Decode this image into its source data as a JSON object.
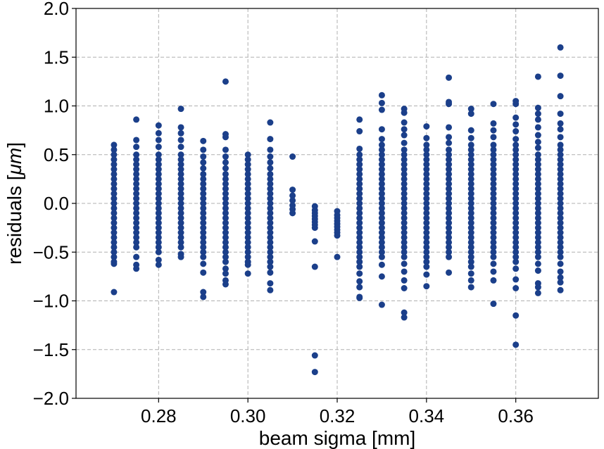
{
  "chart_data": {
    "type": "scatter",
    "title": "",
    "xlabel": "beam sigma [mm]",
    "ylabel": "residuals [",
    "ylabel_mu": "μm",
    "ylabel_end": "]",
    "xlim": [
      0.2615,
      0.3785
    ],
    "ylim": [
      -2.0,
      2.0
    ],
    "x_ticks": [
      0.28,
      0.3,
      0.32,
      0.34,
      0.36
    ],
    "x_tick_labels": [
      "0.28",
      "0.30",
      "0.32",
      "0.34",
      "0.36"
    ],
    "y_ticks": [
      -2.0,
      -1.5,
      -1.0,
      -0.5,
      0.0,
      0.5,
      1.0,
      1.5,
      2.0
    ],
    "y_tick_labels": [
      "−2.0",
      "−1.5",
      "−1.0",
      "−0.5",
      "0.0",
      "0.5",
      "1.0",
      "1.5",
      "2.0"
    ],
    "grid": true,
    "marker_color": "#1b3f8a",
    "series": [
      {
        "name": "residuals",
        "points": [
          {
            "x": 0.27,
            "ys": [
              0.6,
              0.55,
              0.5,
              0.45,
              0.4,
              0.35,
              0.3,
              0.25,
              0.2,
              0.15,
              0.1,
              0.05,
              0.0,
              -0.05,
              -0.1,
              -0.15,
              -0.2,
              -0.25,
              -0.3,
              -0.35,
              -0.4,
              -0.45,
              -0.5,
              -0.55,
              -0.6,
              -0.62,
              -0.91
            ]
          },
          {
            "x": 0.275,
            "ys": [
              0.86,
              0.65,
              0.58,
              0.5,
              0.45,
              0.4,
              0.35,
              0.3,
              0.25,
              0.2,
              0.15,
              0.1,
              0.05,
              0.0,
              -0.05,
              -0.1,
              -0.15,
              -0.2,
              -0.25,
              -0.3,
              -0.35,
              -0.4,
              -0.45,
              -0.55,
              -0.63,
              -0.67
            ]
          },
          {
            "x": 0.28,
            "ys": [
              0.8,
              0.72,
              0.65,
              0.58,
              0.5,
              0.45,
              0.4,
              0.35,
              0.3,
              0.25,
              0.2,
              0.15,
              0.1,
              0.05,
              0.0,
              -0.05,
              -0.1,
              -0.15,
              -0.2,
              -0.25,
              -0.3,
              -0.35,
              -0.4,
              -0.45,
              -0.5,
              -0.58,
              -0.63
            ]
          },
          {
            "x": 0.285,
            "ys": [
              0.97,
              0.78,
              0.72,
              0.65,
              0.58,
              0.5,
              0.45,
              0.4,
              0.35,
              0.3,
              0.25,
              0.2,
              0.15,
              0.1,
              0.05,
              0.0,
              -0.05,
              -0.1,
              -0.15,
              -0.2,
              -0.25,
              -0.3,
              -0.35,
              -0.4,
              -0.45,
              -0.52,
              -0.55
            ]
          },
          {
            "x": 0.29,
            "ys": [
              0.64,
              0.55,
              0.48,
              0.42,
              0.36,
              0.3,
              0.25,
              0.2,
              0.15,
              0.1,
              0.05,
              0.0,
              -0.05,
              -0.1,
              -0.15,
              -0.2,
              -0.25,
              -0.3,
              -0.35,
              -0.4,
              -0.45,
              -0.5,
              -0.55,
              -0.62,
              -0.71,
              -0.91,
              -0.96
            ]
          },
          {
            "x": 0.295,
            "ys": [
              1.25,
              0.71,
              0.68,
              0.55,
              0.48,
              0.42,
              0.36,
              0.3,
              0.25,
              0.2,
              0.15,
              0.1,
              0.05,
              0.0,
              -0.05,
              -0.1,
              -0.15,
              -0.2,
              -0.25,
              -0.3,
              -0.35,
              -0.4,
              -0.45,
              -0.5,
              -0.55,
              -0.6,
              -0.67,
              -0.72,
              -0.79,
              -0.83
            ]
          },
          {
            "x": 0.3,
            "ys": [
              0.5,
              0.45,
              0.4,
              0.35,
              0.3,
              0.25,
              0.2,
              0.15,
              0.1,
              0.05,
              0.0,
              -0.05,
              -0.1,
              -0.15,
              -0.2,
              -0.25,
              -0.3,
              -0.35,
              -0.4,
              -0.45,
              -0.5,
              -0.55,
              -0.6,
              -0.63,
              -0.72
            ]
          },
          {
            "x": 0.305,
            "ys": [
              0.83,
              0.66,
              0.55,
              0.48,
              0.42,
              0.36,
              0.3,
              0.25,
              0.2,
              0.15,
              0.1,
              0.05,
              0.0,
              -0.05,
              -0.1,
              -0.15,
              -0.2,
              -0.25,
              -0.3,
              -0.35,
              -0.4,
              -0.45,
              -0.5,
              -0.55,
              -0.6,
              -0.65,
              -0.71,
              -0.82,
              -0.89
            ]
          },
          {
            "x": 0.31,
            "ys": [
              0.48,
              0.14,
              0.08,
              0.03,
              -0.02,
              -0.06,
              -0.1
            ]
          },
          {
            "x": 0.315,
            "ys": [
              -0.03,
              -0.07,
              -0.1,
              -0.13,
              -0.16,
              -0.19,
              -0.22,
              -0.25,
              -0.39,
              -0.65,
              -1.56,
              -1.73
            ]
          },
          {
            "x": 0.32,
            "ys": [
              -0.08,
              -0.12,
              -0.15,
              -0.18,
              -0.21,
              -0.24,
              -0.27,
              -0.3,
              -0.33,
              -0.55
            ]
          },
          {
            "x": 0.325,
            "ys": [
              0.86,
              0.74,
              0.56,
              0.5,
              0.45,
              0.4,
              0.35,
              0.3,
              0.25,
              0.2,
              0.15,
              0.1,
              0.05,
              0.0,
              -0.05,
              -0.1,
              -0.15,
              -0.2,
              -0.25,
              -0.3,
              -0.35,
              -0.4,
              -0.45,
              -0.5,
              -0.55,
              -0.6,
              -0.65,
              -0.72,
              -0.8,
              -0.86,
              -0.96,
              -0.97
            ]
          },
          {
            "x": 0.33,
            "ys": [
              1.11,
              1.03,
              0.96,
              0.76,
              0.66,
              0.6,
              0.55,
              0.5,
              0.45,
              0.4,
              0.35,
              0.3,
              0.25,
              0.2,
              0.15,
              0.1,
              0.05,
              0.0,
              -0.05,
              -0.1,
              -0.15,
              -0.2,
              -0.25,
              -0.3,
              -0.35,
              -0.4,
              -0.45,
              -0.5,
              -0.55,
              -0.63,
              -0.75,
              -1.04
            ]
          },
          {
            "x": 0.335,
            "ys": [
              0.97,
              0.93,
              0.83,
              0.76,
              0.7,
              0.62,
              0.55,
              0.5,
              0.45,
              0.4,
              0.35,
              0.3,
              0.25,
              0.2,
              0.15,
              0.1,
              0.05,
              0.0,
              -0.05,
              -0.1,
              -0.15,
              -0.2,
              -0.25,
              -0.3,
              -0.35,
              -0.4,
              -0.45,
              -0.5,
              -0.55,
              -0.62,
              -0.7,
              -0.79,
              -0.87,
              -1.12,
              -1.17
            ]
          },
          {
            "x": 0.34,
            "ys": [
              0.79,
              0.67,
              0.6,
              0.55,
              0.5,
              0.45,
              0.4,
              0.35,
              0.3,
              0.25,
              0.2,
              0.15,
              0.1,
              0.05,
              0.0,
              -0.05,
              -0.1,
              -0.15,
              -0.2,
              -0.25,
              -0.3,
              -0.35,
              -0.4,
              -0.45,
              -0.5,
              -0.55,
              -0.6,
              -0.65,
              -0.73,
              -0.85
            ]
          },
          {
            "x": 0.345,
            "ys": [
              1.29,
              1.04,
              1.02,
              0.78,
              0.68,
              0.62,
              0.55,
              0.5,
              0.45,
              0.4,
              0.35,
              0.3,
              0.25,
              0.2,
              0.15,
              0.1,
              0.05,
              0.0,
              -0.05,
              -0.1,
              -0.15,
              -0.2,
              -0.25,
              -0.3,
              -0.35,
              -0.4,
              -0.45,
              -0.5,
              -0.55,
              -0.71
            ]
          },
          {
            "x": 0.35,
            "ys": [
              0.97,
              0.92,
              0.75,
              0.67,
              0.6,
              0.55,
              0.5,
              0.45,
              0.4,
              0.35,
              0.3,
              0.25,
              0.2,
              0.15,
              0.1,
              0.05,
              0.0,
              -0.05,
              -0.1,
              -0.15,
              -0.2,
              -0.25,
              -0.3,
              -0.35,
              -0.4,
              -0.45,
              -0.5,
              -0.55,
              -0.6,
              -0.65,
              -0.72,
              -0.79,
              -0.86
            ]
          },
          {
            "x": 0.355,
            "ys": [
              1.02,
              0.82,
              0.75,
              0.68,
              0.6,
              0.55,
              0.5,
              0.45,
              0.4,
              0.35,
              0.3,
              0.25,
              0.2,
              0.15,
              0.1,
              0.05,
              0.0,
              -0.05,
              -0.1,
              -0.15,
              -0.2,
              -0.25,
              -0.3,
              -0.35,
              -0.4,
              -0.45,
              -0.5,
              -0.55,
              -0.62,
              -0.7,
              -0.79,
              -1.03
            ]
          },
          {
            "x": 0.36,
            "ys": [
              1.05,
              1.02,
              0.88,
              0.81,
              0.74,
              0.66,
              0.6,
              0.55,
              0.5,
              0.45,
              0.4,
              0.35,
              0.3,
              0.25,
              0.2,
              0.15,
              0.1,
              0.05,
              0.0,
              -0.05,
              -0.1,
              -0.15,
              -0.2,
              -0.25,
              -0.3,
              -0.35,
              -0.4,
              -0.45,
              -0.5,
              -0.55,
              -0.6,
              -0.67,
              -0.78,
              -0.87,
              -1.15,
              -1.45
            ]
          },
          {
            "x": 0.365,
            "ys": [
              1.3,
              0.98,
              0.92,
              0.86,
              0.78,
              0.7,
              0.63,
              0.57,
              0.5,
              0.45,
              0.4,
              0.35,
              0.3,
              0.25,
              0.2,
              0.15,
              0.1,
              0.05,
              0.0,
              -0.05,
              -0.1,
              -0.15,
              -0.2,
              -0.25,
              -0.3,
              -0.35,
              -0.4,
              -0.45,
              -0.5,
              -0.55,
              -0.62,
              -0.69,
              -0.82,
              -0.86,
              -0.92
            ]
          },
          {
            "x": 0.37,
            "ys": [
              1.6,
              1.31,
              1.1,
              0.92,
              0.82,
              0.76,
              0.68,
              0.6,
              0.55,
              0.5,
              0.45,
              0.4,
              0.35,
              0.3,
              0.25,
              0.2,
              0.15,
              0.1,
              0.05,
              0.0,
              -0.05,
              -0.1,
              -0.15,
              -0.2,
              -0.25,
              -0.3,
              -0.35,
              -0.4,
              -0.45,
              -0.5,
              -0.55,
              -0.62,
              -0.7,
              -0.76,
              -0.81,
              -0.89
            ]
          }
        ]
      }
    ]
  }
}
